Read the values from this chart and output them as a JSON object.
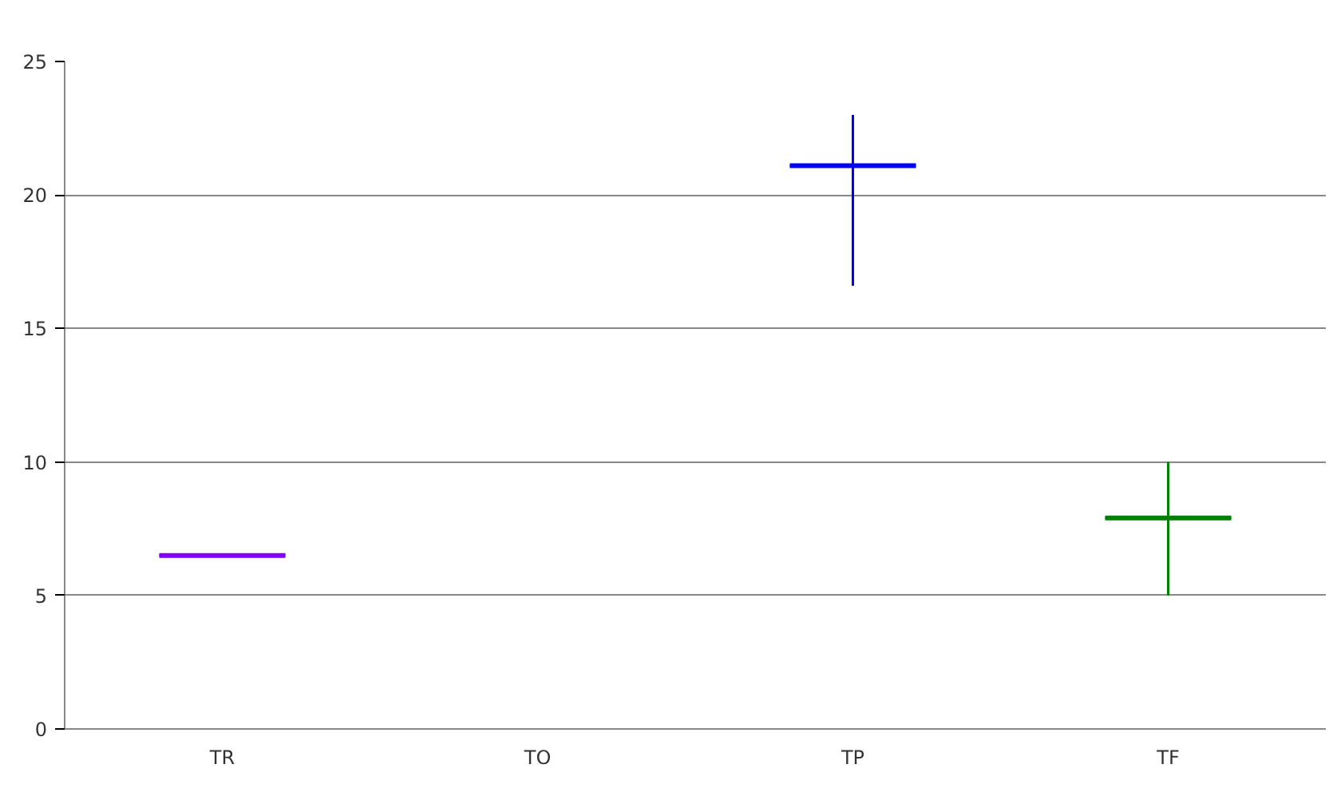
{
  "chart_data": {
    "type": "box",
    "categories": [
      "TR",
      "TO",
      "TP",
      "TF"
    ],
    "boxes": [
      {
        "low": 6.5,
        "q1": 6.5,
        "median": 6.5,
        "q3": 6.5,
        "high": 6.5
      },
      null,
      {
        "low": 16.6,
        "q1": 21.1,
        "median": 21.1,
        "q3": 21.1,
        "high": 23
      },
      {
        "low": 5,
        "q1": 7.9,
        "median": 7.9,
        "q3": 7.9,
        "high": 10
      }
    ],
    "colors": [
      "#8000ff",
      "#000000",
      "#0000ff",
      "#008000"
    ],
    "ylim": [
      0,
      25
    ],
    "yticks": [
      0,
      5,
      10,
      15,
      20,
      25
    ],
    "grid": "y"
  }
}
